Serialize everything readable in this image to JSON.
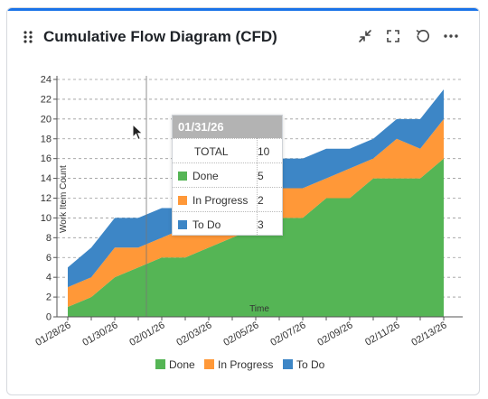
{
  "widget": {
    "title": "Cumulative Flow Diagram (CFD)",
    "icons": [
      "drag-handle-icon",
      "collapse-icon",
      "fullscreen-icon",
      "refresh-icon",
      "more-icon"
    ],
    "accent_color": "#1a73e8"
  },
  "chart_data": {
    "type": "area",
    "stacked": true,
    "xlabel": "Time",
    "ylabel": "Work Item Count",
    "ylim": [
      0,
      24
    ],
    "yticks": [
      0,
      2,
      4,
      6,
      8,
      10,
      12,
      14,
      16,
      18,
      20,
      22,
      24
    ],
    "x": [
      "01/28/26",
      "01/29/26",
      "01/30/26",
      "01/31/26",
      "02/01/26",
      "02/02/26",
      "02/03/26",
      "02/04/26",
      "02/05/26",
      "02/06/26",
      "02/07/26",
      "02/08/26",
      "02/09/26",
      "02/10/26",
      "02/11/26",
      "02/12/26",
      "02/13/26"
    ],
    "xtick_labels": [
      "01/28/26",
      "01/30/26",
      "02/01/26",
      "02/03/26",
      "02/05/26",
      "02/07/26",
      "02/09/26",
      "02/11/26",
      "02/13/26"
    ],
    "series": [
      {
        "name": "Done",
        "color": "#55b555",
        "values": [
          1,
          2,
          4,
          5,
          6,
          6,
          7,
          8,
          9,
          10,
          10,
          12,
          12,
          14,
          14,
          14,
          16
        ]
      },
      {
        "name": "In Progress",
        "color": "#ff9838",
        "values": [
          2,
          2,
          3,
          2,
          2,
          3,
          3,
          3,
          3,
          3,
          3,
          2,
          3,
          2,
          4,
          3,
          4
        ]
      },
      {
        "name": "To Do",
        "color": "#3d86c6",
        "values": [
          2,
          3,
          3,
          3,
          3,
          2,
          3,
          3,
          3,
          3,
          3,
          3,
          2,
          2,
          2,
          3,
          3
        ]
      }
    ],
    "grid": true,
    "legend_position": "bottom"
  },
  "tooltip": {
    "date": "01/31/26",
    "total_label": "TOTAL",
    "total_value": "10",
    "rows": [
      {
        "label": "Done",
        "value": "5",
        "color": "#55b555"
      },
      {
        "label": "In Progress",
        "value": "2",
        "color": "#ff9838"
      },
      {
        "label": "To Do",
        "value": "3",
        "color": "#3d86c6"
      }
    ]
  }
}
